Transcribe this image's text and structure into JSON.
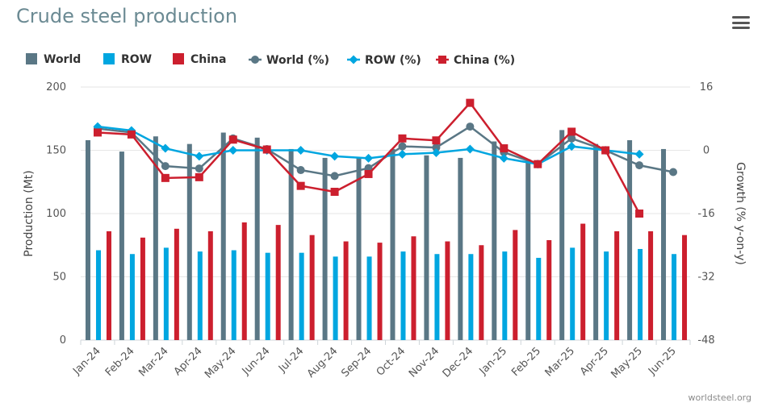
{
  "header": {
    "title": "Crude steel production",
    "menu_icon": "hamburger-menu-icon"
  },
  "credit": "worldsteel.org",
  "colors": {
    "world": "#5a7785",
    "row": "#00a6e0",
    "china": "#cc1f2e",
    "title": "#6b8a93",
    "grid": "#e6e6e6"
  },
  "chart_data": {
    "type": "bar",
    "title": "Crude steel production",
    "xlabel": "",
    "ylabel": "Production (Mt)",
    "y2label": "Growth (% y-on-y)",
    "ylim": [
      0,
      200
    ],
    "y2lim": [
      -48,
      16
    ],
    "yticks": [
      0,
      50,
      100,
      150,
      200
    ],
    "y2ticks": [
      -48,
      -32,
      -16,
      0,
      16
    ],
    "grid": true,
    "legend_position": "top-left",
    "categories": [
      "Jan-24",
      "Feb-24",
      "Mar-24",
      "Apr-24",
      "May-24",
      "Jun-24",
      "Jul-24",
      "Aug-24",
      "Sep-24",
      "Oct-24",
      "Nov-24",
      "Dec-24",
      "Jan-25",
      "Feb-25",
      "Mar-25",
      "Apr-25",
      "May-25",
      "Jun-25"
    ],
    "bar_series": [
      {
        "name": "World",
        "color": "#5a7785",
        "values": [
          158,
          149,
          161,
          155,
          164,
          160,
          151,
          144,
          144,
          151,
          146,
          144,
          157,
          143,
          166,
          155,
          158,
          151
        ]
      },
      {
        "name": "ROW",
        "color": "#00a6e0",
        "values": [
          71,
          68,
          73,
          70,
          71,
          69,
          69,
          66,
          66,
          70,
          68,
          68,
          70,
          65,
          73,
          70,
          72,
          68
        ]
      },
      {
        "name": "China",
        "color": "#cc1f2e",
        "values": [
          86,
          81,
          88,
          86,
          93,
          91,
          83,
          78,
          77,
          82,
          78,
          75,
          87,
          79,
          92,
          86,
          86,
          83
        ]
      }
    ],
    "line_series": [
      {
        "name": "World (%)",
        "color": "#5a7785",
        "marker": "circle",
        "axis": "right",
        "values": [
          5.5,
          4.5,
          -4,
          -4.6,
          3,
          0.3,
          -5,
          -6.5,
          -4.5,
          1,
          0.7,
          6,
          -0.5,
          -3.5,
          3,
          0,
          -3.8,
          -5.5
        ]
      },
      {
        "name": "ROW (%)",
        "color": "#00a6e0",
        "marker": "diamond",
        "axis": "right",
        "values": [
          6,
          5,
          0.5,
          -1.5,
          0,
          0,
          0,
          -1.5,
          -2,
          -1,
          -0.6,
          0.3,
          -2,
          -3.5,
          1,
          0,
          -1,
          null
        ]
      },
      {
        "name": "China (%)",
        "color": "#cc1f2e",
        "marker": "square",
        "axis": "right",
        "values": [
          4.5,
          4,
          -7,
          -6.8,
          2.7,
          0.2,
          -9,
          -10.5,
          -6,
          3,
          2.5,
          12,
          0.5,
          -3.5,
          4.7,
          0,
          -16,
          null
        ]
      }
    ]
  }
}
